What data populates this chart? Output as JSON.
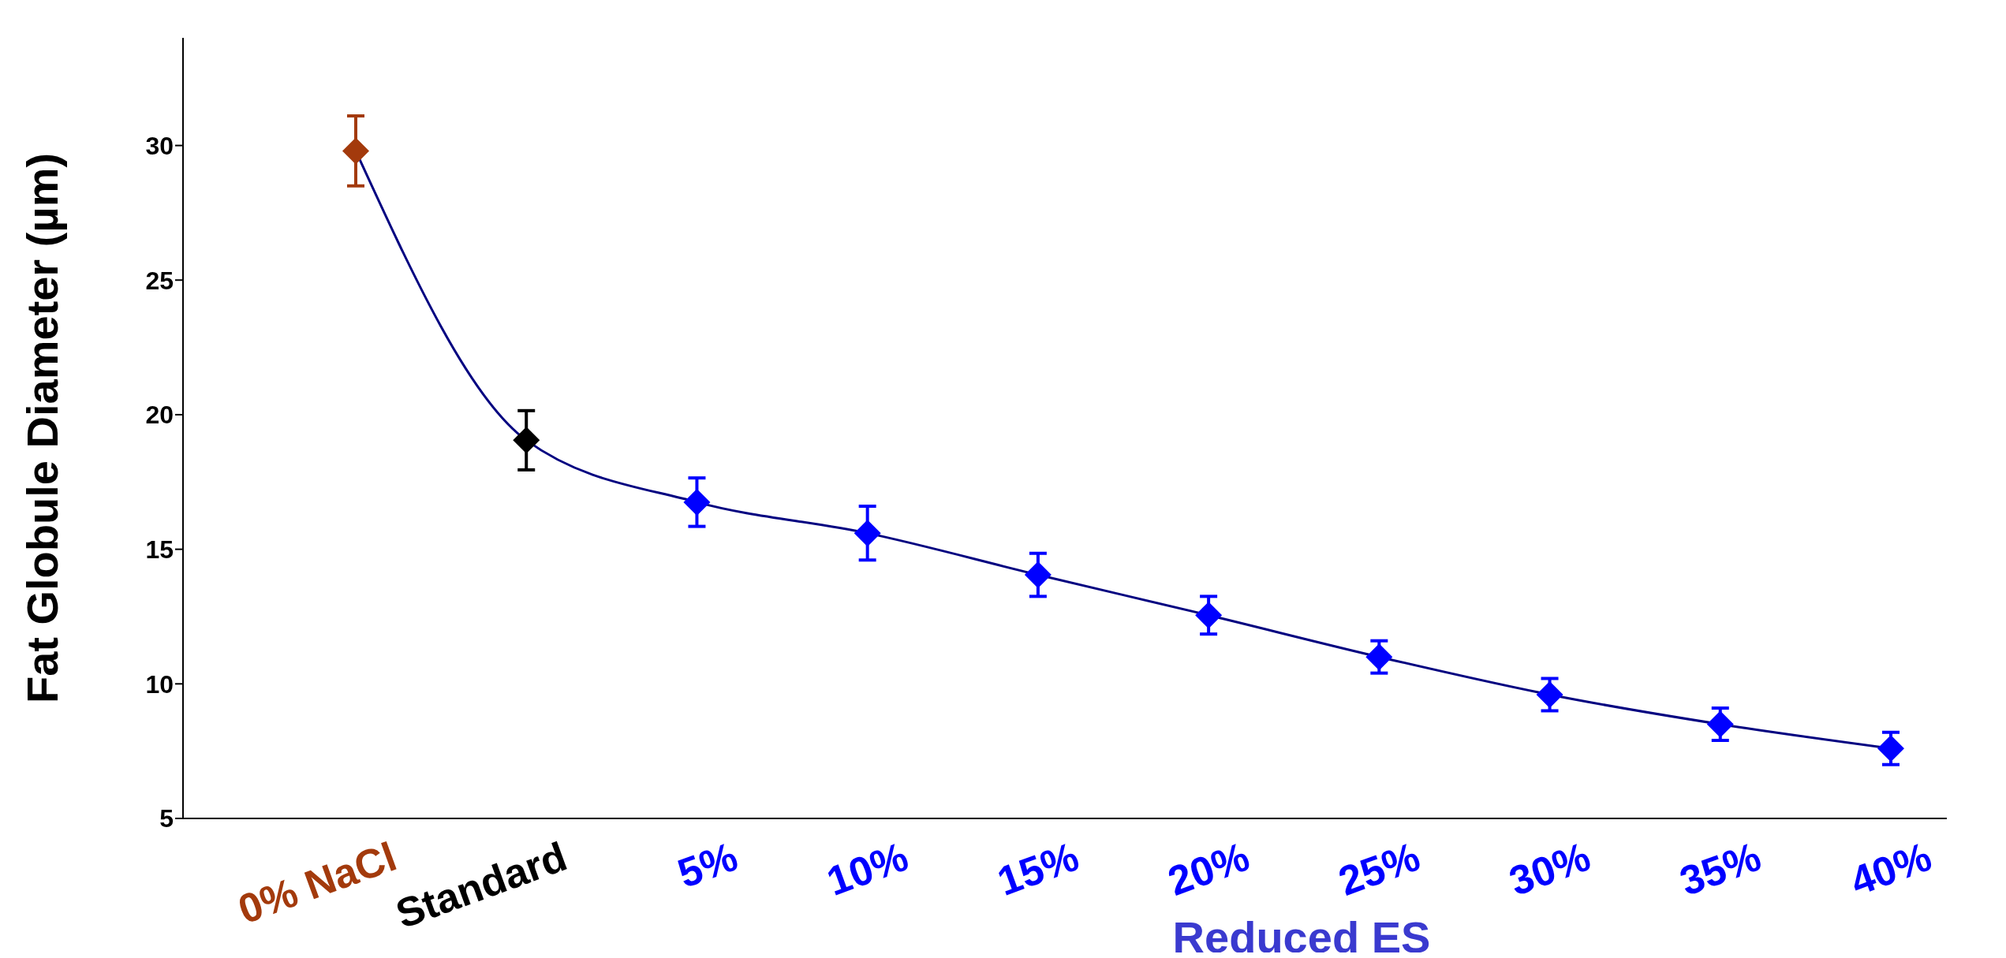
{
  "chart_data": {
    "type": "line",
    "ylabel": "Fat Globule Diameter (µm)",
    "xlabel": "Reduced ES",
    "categories": [
      "0% NaCl",
      "Standard",
      "5%",
      "10%",
      "15%",
      "20%",
      "25%",
      "30%",
      "35%",
      "40%"
    ],
    "values": [
      29.8,
      19.05,
      16.75,
      15.6,
      14.05,
      12.55,
      11.0,
      9.6,
      8.5,
      7.6
    ],
    "errors": [
      1.3,
      1.1,
      0.9,
      1.0,
      0.8,
      0.7,
      0.6,
      0.6,
      0.6,
      0.6
    ],
    "colors": [
      "#a33a0c",
      "#000000",
      "#0000ff",
      "#0000ff",
      "#0000ff",
      "#0000ff",
      "#0000ff",
      "#0000ff",
      "#0000ff",
      "#0000ff"
    ],
    "color": "#000080",
    "ylim": [
      5,
      34
    ],
    "yticks": [
      5,
      10,
      15,
      20,
      25,
      30
    ],
    "grid": false,
    "legend": false,
    "marker": "diamond",
    "line_style": "solid"
  }
}
